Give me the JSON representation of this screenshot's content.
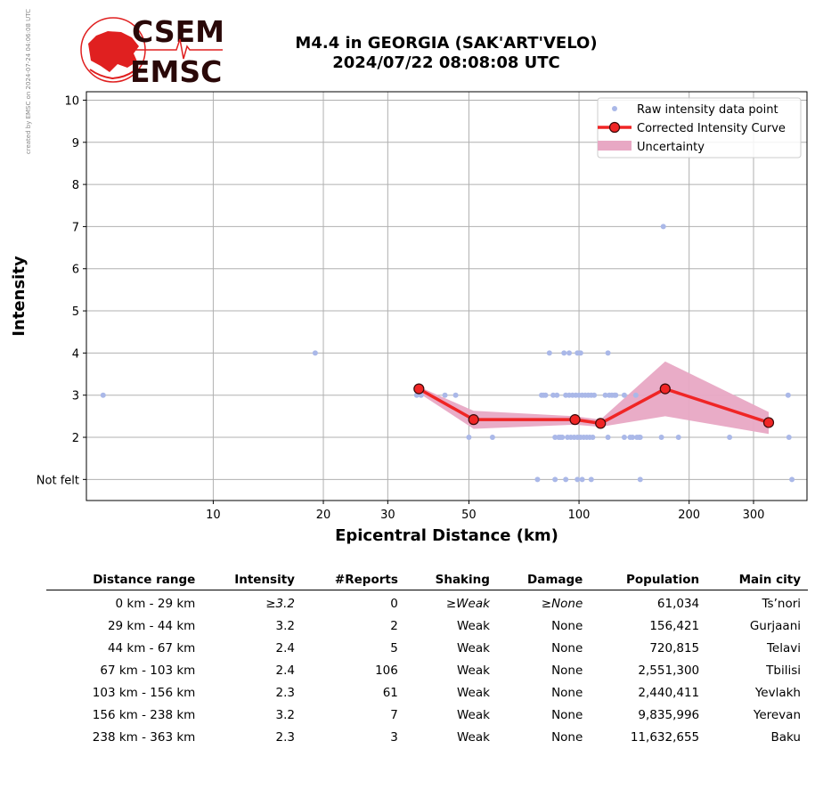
{
  "credit": "created by EMSC on 2024-07-24 04:06:08 UTC",
  "logo": {
    "top": "CSEM",
    "bottom": "EMSC",
    "red": "#e02020",
    "dark": "#2a0808"
  },
  "title": {
    "line1": "M4.4 in GEORGIA (SAK'ART'VELO)",
    "line2": "2024/07/22 08:08:08 UTC"
  },
  "chart_data": {
    "type": "scatter",
    "xlabel": "Epicentral Distance (km)",
    "ylabel": "Intensity",
    "x_scale": "log",
    "xlim": [
      4.5,
      420
    ],
    "ylim": [
      0.5,
      10.2
    ],
    "grid": true,
    "legend_placement": "top-right",
    "x_ticks": [
      10,
      20,
      30,
      50,
      100,
      200,
      300
    ],
    "y_tick_labels": [
      "Not felt",
      "2",
      "3",
      "4",
      "5",
      "6",
      "7",
      "8",
      "9",
      "10"
    ],
    "y_tick_values": [
      1,
      2,
      3,
      4,
      5,
      6,
      7,
      8,
      9,
      10
    ],
    "legend": [
      "Raw intensity data point",
      "Corrected Intensity Curve",
      "Uncertainty"
    ],
    "raw_points": [
      [
        5,
        3
      ],
      [
        19,
        4
      ],
      [
        36,
        3
      ],
      [
        37,
        3
      ],
      [
        43,
        3
      ],
      [
        46,
        3
      ],
      [
        50,
        2
      ],
      [
        58,
        2
      ],
      [
        77,
        1
      ],
      [
        79,
        3
      ],
      [
        80,
        3
      ],
      [
        81,
        3
      ],
      [
        83,
        4
      ],
      [
        85,
        3
      ],
      [
        86,
        2
      ],
      [
        86,
        1
      ],
      [
        87,
        3
      ],
      [
        88,
        2
      ],
      [
        89,
        2
      ],
      [
        90,
        2
      ],
      [
        91,
        4
      ],
      [
        92,
        3
      ],
      [
        92,
        1
      ],
      [
        93,
        2
      ],
      [
        94,
        3
      ],
      [
        94,
        4
      ],
      [
        95,
        2
      ],
      [
        96,
        3
      ],
      [
        97,
        2
      ],
      [
        98,
        3
      ],
      [
        99,
        4
      ],
      [
        99,
        2
      ],
      [
        99,
        1
      ],
      [
        100,
        3
      ],
      [
        101,
        4
      ],
      [
        101,
        2
      ],
      [
        102,
        3
      ],
      [
        102,
        1
      ],
      [
        103,
        2
      ],
      [
        104,
        3
      ],
      [
        105,
        2
      ],
      [
        106,
        3
      ],
      [
        107,
        2
      ],
      [
        108,
        3
      ],
      [
        108,
        1
      ],
      [
        109,
        2
      ],
      [
        110,
        3
      ],
      [
        118,
        3
      ],
      [
        120,
        2
      ],
      [
        120,
        4
      ],
      [
        121,
        3
      ],
      [
        123,
        3
      ],
      [
        125,
        3
      ],
      [
        126,
        3
      ],
      [
        133,
        3
      ],
      [
        133,
        2
      ],
      [
        138,
        2
      ],
      [
        140,
        2
      ],
      [
        143,
        3
      ],
      [
        144,
        2
      ],
      [
        146,
        2
      ],
      [
        147,
        2
      ],
      [
        147,
        1
      ],
      [
        168,
        2
      ],
      [
        170,
        7
      ],
      [
        187,
        2
      ],
      [
        258,
        2
      ],
      [
        373,
        3
      ],
      [
        375,
        2
      ],
      [
        382,
        1
      ]
    ],
    "series": [
      {
        "name": "Corrected Intensity Curve",
        "x": [
          36.5,
          51.5,
          97.5,
          114.5,
          172,
          330
        ],
        "y": [
          3.15,
          2.42,
          2.42,
          2.33,
          3.15,
          2.35
        ],
        "lower": [
          3.05,
          2.2,
          2.3,
          2.25,
          2.5,
          2.08
        ],
        "upper": [
          3.2,
          2.63,
          2.5,
          2.42,
          3.8,
          2.6
        ]
      }
    ],
    "colors": {
      "raw": "#aab8e8",
      "curve": "#f02525",
      "marker": "#f02525",
      "band": "#e8a8c4"
    }
  },
  "table": {
    "headers": [
      "Distance range",
      "Intensity",
      "#Reports",
      "Shaking",
      "Damage",
      "Population",
      "Main city"
    ],
    "rows": [
      [
        "0 km -   29 km",
        "≥3.2",
        "0",
        "≥Weak",
        "≥None",
        "61,034",
        "Ts’nori"
      ],
      [
        "29 km -   44 km",
        "3.2",
        "2",
        "Weak",
        "None",
        "156,421",
        "Gurjaani"
      ],
      [
        "44 km -   67 km",
        "2.4",
        "5",
        "Weak",
        "None",
        "720,815",
        "Telavi"
      ],
      [
        "67 km -  103 km",
        "2.4",
        "106",
        "Weak",
        "None",
        "2,551,300",
        "Tbilisi"
      ],
      [
        "103 km -  156 km",
        "2.3",
        "61",
        "Weak",
        "None",
        "2,440,411",
        "Yevlakh"
      ],
      [
        "156 km -  238 km",
        "3.2",
        "7",
        "Weak",
        "None",
        "9,835,996",
        "Yerevan"
      ],
      [
        "238 km -  363 km",
        "2.3",
        "3",
        "Weak",
        "None",
        "11,632,655",
        "Baku"
      ]
    ]
  }
}
